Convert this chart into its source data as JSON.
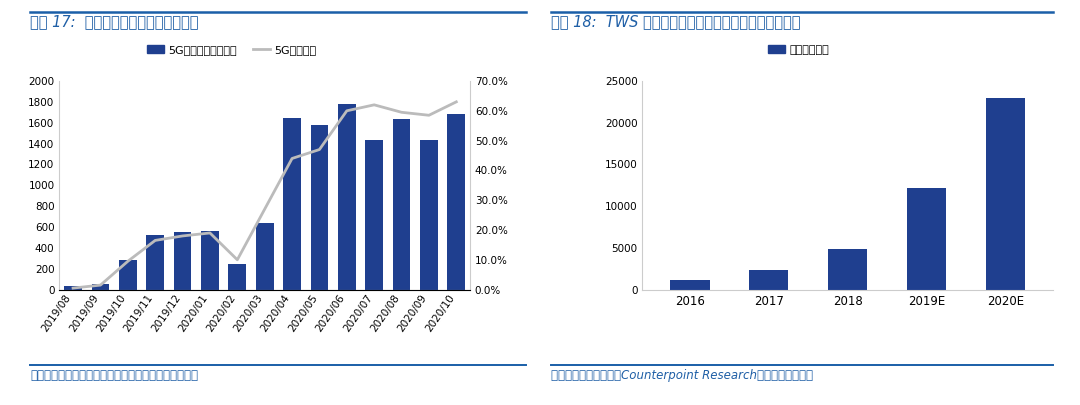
{
  "chart1": {
    "title": "图表 17:  近期智能手机出货量大幅反弹",
    "categories": [
      "2019/08",
      "2019/09",
      "2019/10",
      "2019/11",
      "2019/12",
      "2020/01",
      "2020/02",
      "2020/03",
      "2020/04",
      "2020/05",
      "2020/06",
      "2020/07",
      "2020/08",
      "2020/09",
      "2020/10"
    ],
    "bar_values": [
      30,
      50,
      280,
      520,
      550,
      560,
      250,
      640,
      1650,
      1580,
      1780,
      1430,
      1640,
      1430,
      1680
    ],
    "line_values": [
      0.5,
      1.5,
      9.5,
      16.5,
      18.0,
      19.0,
      10.0,
      27.0,
      44.0,
      47.0,
      60.0,
      62.0,
      59.5,
      58.5,
      63.0
    ],
    "bar_color": "#1F3F8F",
    "line_color": "#BBBBBB",
    "legend1": "5G手机出货（万部）",
    "legend2": "5G手机占比",
    "ylim_left": [
      0,
      2000
    ],
    "ylim_right": [
      0,
      70
    ],
    "yticks_left": [
      0,
      200,
      400,
      600,
      800,
      1000,
      1200,
      1400,
      1600,
      1800,
      2000
    ],
    "yticks_right": [
      0.0,
      10.0,
      20.0,
      30.0,
      40.0,
      50.0,
      60.0,
      70.0
    ],
    "source": "资料来源：国盛电子组，中国信通院，国盛证券研究所"
  },
  "chart2": {
    "title": "图表 18:  TWS 无线耳机出货量有望持续超预期（万台）",
    "categories": [
      "2016",
      "2017",
      "2018",
      "2019E",
      "2020E"
    ],
    "bar_values": [
      1200,
      2400,
      4900,
      12200,
      23000
    ],
    "bar_color": "#1F3F8F",
    "legend": "出货量（万）",
    "ylim": [
      0,
      25000
    ],
    "yticks": [
      0,
      5000,
      10000,
      15000,
      20000,
      25000
    ],
    "source": "资料来源：国盛电子，Counterpoint Research，国盛证券研究所"
  },
  "title_color": "#1F5FA6",
  "title_fontsize": 10.5,
  "source_fontsize": 8.5,
  "tick_fontsize": 7.5,
  "legend_fontsize": 8,
  "background_color": "#FFFFFF",
  "divider_color": "#1A5FA8"
}
